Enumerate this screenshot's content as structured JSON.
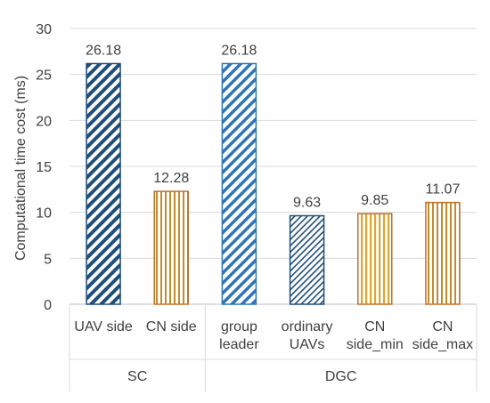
{
  "chart_data": {
    "type": "bar",
    "title": "",
    "xlabel": "",
    "ylabel": "Computational time cost (ms)",
    "ylim": [
      0,
      30
    ],
    "yticks": [
      0,
      5,
      10,
      15,
      20,
      25,
      30
    ],
    "grid": true,
    "categories": [
      {
        "label": [
          "UAV side"
        ],
        "group": "SC",
        "value": 26.18,
        "value_label": "26.18",
        "pattern": "diagonal-hatch-dense",
        "fill_color": "#1f4e79",
        "edge_color": "#1f4e79"
      },
      {
        "label": [
          "CN side"
        ],
        "group": "SC",
        "value": 12.28,
        "value_label": "12.28",
        "pattern": "vertical-stripes",
        "fill_color": "#c58b2a",
        "edge_color": "#c0702b"
      },
      {
        "label": [
          "group",
          "leader"
        ],
        "group": "DGC",
        "value": 26.18,
        "value_label": "26.18",
        "pattern": "diagonal-hatch",
        "fill_color": "#2e75b6",
        "edge_color": "#2e75b6"
      },
      {
        "label": [
          "ordinary",
          "UAVs"
        ],
        "group": "DGC",
        "value": 9.63,
        "value_label": "9.63",
        "pattern": "diagonal-hatch-light",
        "fill_color": "#1f4e79",
        "edge_color": "#1f4e79"
      },
      {
        "label": [
          "CN",
          "side_min"
        ],
        "group": "DGC",
        "value": 9.85,
        "value_label": "9.85",
        "pattern": "vertical-stripes-gold",
        "fill_color": "#e0a52c",
        "edge_color": "#c0702b"
      },
      {
        "label": [
          "CN",
          "side_max"
        ],
        "group": "DGC",
        "value": 11.07,
        "value_label": "11.07",
        "pattern": "vertical-stripes",
        "fill_color": "#c58b2a",
        "edge_color": "#c0702b"
      }
    ],
    "groups": [
      "SC",
      "DGC"
    ]
  }
}
